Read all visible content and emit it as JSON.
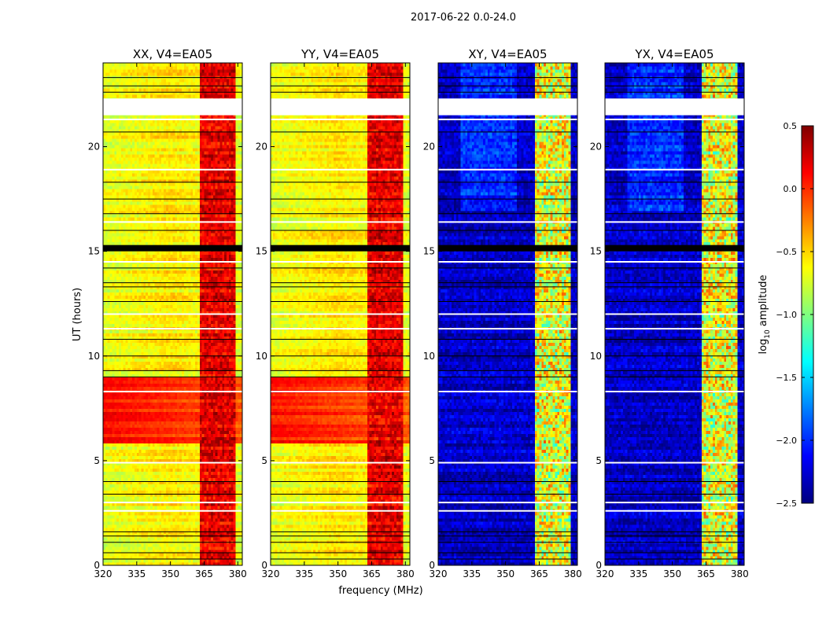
{
  "figure": {
    "suptitle": "2017-06-22 0.0-24.0",
    "xlabel": "frequency (MHz)",
    "ylabel": "UT (hours)"
  },
  "chart_data": [
    {
      "type": "heatmap",
      "title": "XX, V4=EA05",
      "xlim": [
        320,
        382
      ],
      "ylim": [
        0,
        24
      ],
      "xticks": [
        320,
        335,
        350,
        365,
        380
      ],
      "yticks": [
        0,
        5,
        10,
        15,
        20
      ],
      "colormap": "jet",
      "value_description": "log10 amplitude",
      "typical_values": {
        "off_band": -0.7,
        "in_band_365_380MHz": 0.2,
        "ut_5.8_to_9h": 0.1
      },
      "data_gaps_ut_hours": [
        [
          21.5,
          22.3
        ]
      ],
      "flagged_ut_hours": [
        [
          15.0,
          15.3
        ]
      ]
    },
    {
      "type": "heatmap",
      "title": "YY, V4=EA05",
      "xlim": [
        320,
        382
      ],
      "ylim": [
        0,
        24
      ],
      "xticks": [
        320,
        335,
        350,
        365,
        380
      ],
      "yticks": [
        0,
        5,
        10,
        15,
        20
      ],
      "colormap": "jet",
      "value_description": "log10 amplitude",
      "typical_values": {
        "off_band": -0.7,
        "in_band_365_380MHz": 0.2,
        "ut_5.8_to_9h": 0.1
      },
      "data_gaps_ut_hours": [
        [
          21.5,
          22.3
        ]
      ],
      "flagged_ut_hours": [
        [
          15.0,
          15.3
        ]
      ]
    },
    {
      "type": "heatmap",
      "title": "XY, V4=EA05",
      "xlim": [
        320,
        382
      ],
      "ylim": [
        0,
        24
      ],
      "xticks": [
        320,
        335,
        350,
        365,
        380
      ],
      "yticks": [
        0,
        5,
        10,
        15,
        20
      ],
      "colormap": "jet",
      "value_description": "log10 amplitude",
      "typical_values": {
        "off_band": -2.3,
        "in_band_365_380MHz": -0.7
      },
      "data_gaps_ut_hours": [
        [
          21.5,
          22.3
        ]
      ],
      "flagged_ut_hours": [
        [
          15.0,
          15.3
        ]
      ]
    },
    {
      "type": "heatmap",
      "title": "YX, V4=EA05",
      "xlim": [
        320,
        382
      ],
      "ylim": [
        0,
        24
      ],
      "xticks": [
        320,
        335,
        350,
        365,
        380
      ],
      "yticks": [
        0,
        5,
        10,
        15,
        20
      ],
      "colormap": "jet",
      "value_description": "log10 amplitude",
      "typical_values": {
        "off_band": -2.3,
        "in_band_365_380MHz": -0.7
      },
      "data_gaps_ut_hours": [
        [
          21.5,
          22.3
        ]
      ],
      "flagged_ut_hours": [
        [
          15.0,
          15.3
        ]
      ]
    }
  ],
  "colorbar": {
    "label": "log",
    "label_sub": "10",
    "label_rest": " amplitude",
    "vmin": -2.5,
    "vmax": 0.5,
    "ticks": [
      0.5,
      0.0,
      -0.5,
      -1.0,
      -1.5,
      -2.0,
      -2.5
    ],
    "tick_labels": [
      "0.5",
      "0.0",
      "−0.5",
      "−1.0",
      "−1.5",
      "−2.0",
      "−2.5"
    ],
    "colormap": "jet"
  }
}
